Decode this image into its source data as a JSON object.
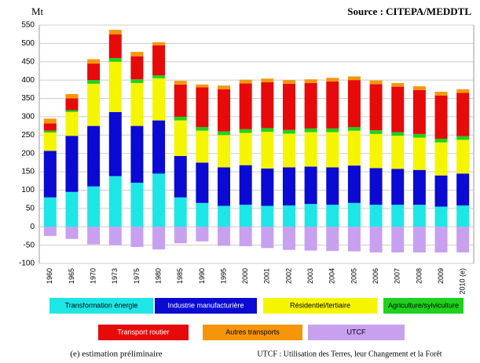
{
  "chart_data": {
    "type": "bar",
    "stacked": true,
    "unit_label": "Mt",
    "source": "Source : CITEPA/MEDDTL",
    "notes": [
      "(e) estimation préliminaire",
      "UTCF : Utilisation des Terres, leur Changement et la Forêt"
    ],
    "categories": [
      "1960",
      "1965",
      "1970",
      "1973",
      "1975",
      "1980",
      "1985",
      "1990",
      "1995",
      "2000",
      "2001",
      "2002",
      "2003",
      "2004",
      "2005",
      "2006",
      "2007",
      "2008",
      "2009",
      "2010 (e)"
    ],
    "ylim": [
      -100,
      550
    ],
    "yticks": [
      -100,
      -50,
      0,
      50,
      100,
      150,
      200,
      250,
      300,
      350,
      400,
      450,
      500,
      550
    ],
    "grid": true,
    "series": [
      {
        "name": "Transformation énergie",
        "color": "#1ee6e6",
        "values": [
          80,
          95,
          110,
          138,
          120,
          145,
          80,
          65,
          57,
          60,
          57,
          58,
          62,
          60,
          65,
          60,
          60,
          60,
          55,
          58
        ]
      },
      {
        "name": "Industrie manufacturière",
        "color": "#0a0ad2",
        "values": [
          127,
          153,
          165,
          175,
          155,
          145,
          113,
          110,
          105,
          108,
          102,
          104,
          102,
          102,
          102,
          100,
          98,
          95,
          85,
          87
        ]
      },
      {
        "name": "Résidentiel/tertiaire",
        "color": "#f5f500",
        "values": [
          50,
          65,
          115,
          137,
          117,
          115,
          97,
          87,
          88,
          88,
          100,
          92,
          94,
          96,
          95,
          93,
          90,
          88,
          90,
          92
        ]
      },
      {
        "name": "Agriculture/sylviculture",
        "color": "#1ed21e",
        "values": [
          5,
          5,
          10,
          10,
          10,
          8,
          10,
          10,
          10,
          10,
          10,
          10,
          10,
          10,
          10,
          10,
          10,
          10,
          10,
          10
        ]
      },
      {
        "name": "Transport routier",
        "color": "#e60a0a",
        "values": [
          20,
          32,
          45,
          65,
          63,
          82,
          88,
          108,
          115,
          125,
          125,
          126,
          124,
          128,
          128,
          126,
          124,
          120,
          118,
          118
        ]
      },
      {
        "name": "Autres transports",
        "color": "#f5960a",
        "values": [
          13,
          12,
          12,
          12,
          12,
          8,
          10,
          8,
          10,
          10,
          10,
          10,
          10,
          10,
          10,
          10,
          10,
          10,
          10,
          10
        ]
      },
      {
        "name": "UTCF",
        "color": "#c8a0f0",
        "values": [
          -25,
          -33,
          -48,
          -50,
          -55,
          -62,
          -45,
          -40,
          -52,
          -53,
          -58,
          -63,
          -65,
          -66,
          -67,
          -70,
          -70,
          -70,
          -70,
          -70
        ]
      }
    ]
  }
}
